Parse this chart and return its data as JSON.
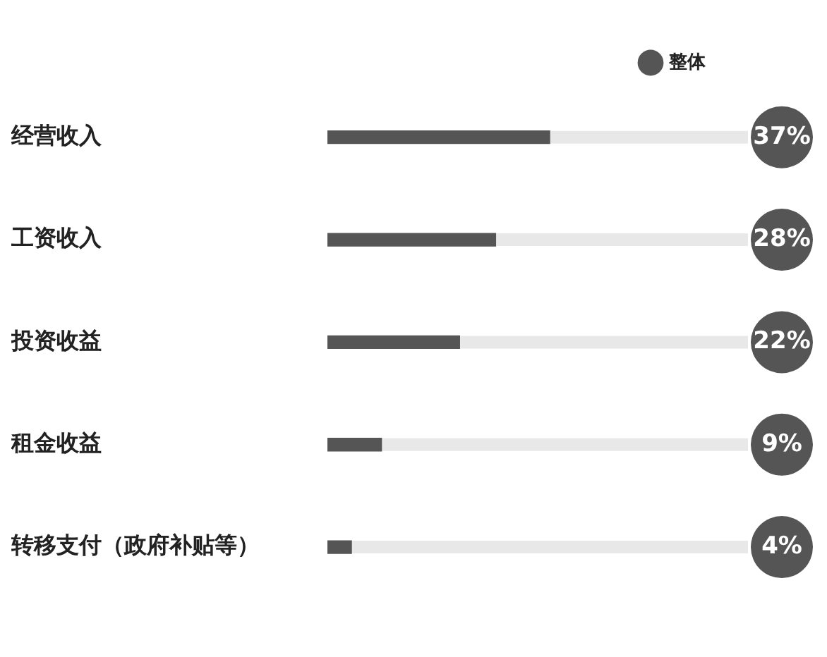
{
  "chart_data": {
    "type": "bar",
    "orientation": "horizontal",
    "categories": [
      "经营收入",
      "工资收入",
      "投资收益",
      "租金收益",
      "转移支付（政府补贴等）"
    ],
    "series": [
      {
        "name": "整体",
        "color": "#555555",
        "values": [
          37,
          28,
          22,
          9,
          4
        ],
        "value_labels": [
          "37%",
          "28%",
          "22%",
          "9%",
          "4%"
        ]
      }
    ],
    "legend": "top",
    "tick_labels": "y",
    "grid": false
  }
}
